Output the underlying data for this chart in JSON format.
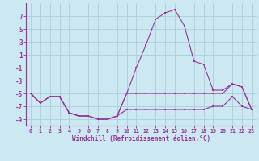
{
  "xlabel": "Windchill (Refroidissement éolien,°C)",
  "hours": [
    0,
    1,
    2,
    3,
    4,
    5,
    6,
    7,
    8,
    9,
    10,
    11,
    12,
    13,
    14,
    15,
    16,
    17,
    18,
    19,
    20,
    21,
    22,
    23
  ],
  "line1": [
    -5,
    -6.5,
    -5.5,
    -5.5,
    -8,
    -8.5,
    -8.5,
    -9,
    -9,
    -8.5,
    -5,
    -1,
    2.5,
    6.5,
    7.5,
    8,
    5.5,
    0,
    -0.5,
    -4.5,
    -4.5,
    -3.5,
    -4,
    -7.5
  ],
  "line2": [
    -5,
    -6.5,
    -5.5,
    -5.5,
    -8,
    -8.5,
    -8.5,
    -9,
    -9,
    -8.5,
    -5,
    -5,
    -5,
    -5,
    -5,
    -5,
    -5,
    -5,
    -5,
    -5,
    -5,
    -3.5,
    -4,
    -7.5
  ],
  "line3": [
    -5,
    -6.5,
    -5.5,
    -5.5,
    -8,
    -8.5,
    -8.5,
    -9,
    -9,
    -8.5,
    -7.5,
    -7.5,
    -7.5,
    -7.5,
    -7.5,
    -7.5,
    -7.5,
    -7.5,
    -7.5,
    -7,
    -7,
    -5.5,
    -7,
    -7.5
  ],
  "line_color": "#993399",
  "bg_color": "#cce8f0",
  "grid_color": "#aaccdd",
  "axis_color": "#993399",
  "ylim": [
    -10,
    9
  ],
  "yticks": [
    -9,
    -7,
    -5,
    -3,
    -1,
    1,
    3,
    5,
    7
  ],
  "xlim": [
    -0.5,
    23.5
  ]
}
